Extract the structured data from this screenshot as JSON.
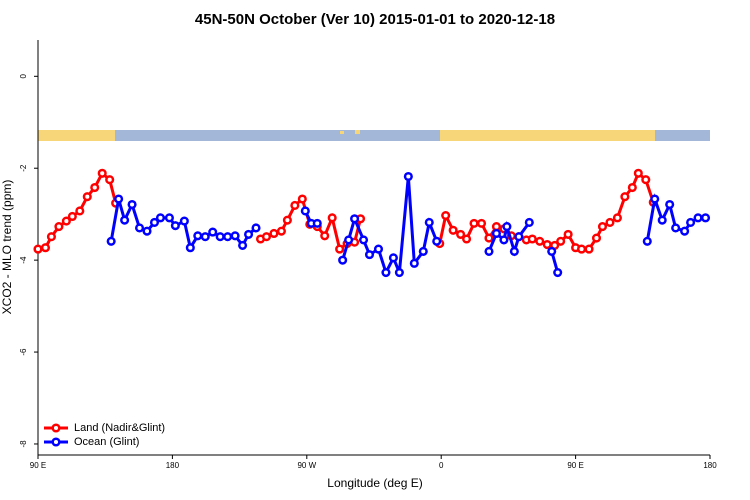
{
  "chart_data": {
    "type": "line",
    "title": "45N-50N October (Ver 10)   2015-01-01 to 2020-12-18",
    "xlabel": "Longitude (deg E)",
    "ylabel": "XCO2 - MLO trend (ppm)",
    "xlim": [
      90,
      540
    ],
    "ylim": [
      -8.24,
      0.79
    ],
    "xticks": [
      {
        "value": 90,
        "label": "90 E"
      },
      {
        "value": 180,
        "label": "180"
      },
      {
        "value": 270,
        "label": "90 W"
      },
      {
        "value": 360,
        "label": "0"
      },
      {
        "value": 450,
        "label": "90 E"
      },
      {
        "value": 540,
        "label": "180"
      }
    ],
    "yticks": [
      -8,
      -6,
      -4,
      -2,
      0
    ],
    "legend": "bottomleft",
    "series": [
      {
        "name": "Land (Nadir&Glint)",
        "color": "#ff0000",
        "x": [
          90,
          95,
          99,
          104,
          109,
          113,
          118,
          123,
          128,
          133,
          138,
          142,
          null,
          239,
          243,
          248,
          253,
          257,
          262,
          267,
          272,
          277,
          282,
          287,
          292,
          297,
          302,
          306,
          null,
          359,
          363,
          368,
          373,
          377,
          382,
          387,
          392,
          397,
          402,
          407,
          412,
          417,
          421,
          426,
          431,
          436,
          440,
          445,
          450,
          454,
          459,
          464,
          468,
          473,
          478,
          483,
          488,
          492,
          497,
          502
        ],
        "values": [
          -3.76,
          -3.73,
          -3.49,
          -3.27,
          -3.15,
          -3.05,
          -2.93,
          -2.62,
          -2.42,
          -2.11,
          -2.25,
          -2.76,
          null,
          -3.54,
          -3.49,
          -3.42,
          -3.37,
          -3.13,
          -2.81,
          -2.67,
          -3.22,
          -3.27,
          -3.47,
          -3.08,
          -3.76,
          -3.64,
          -3.61,
          -3.1,
          null,
          -3.64,
          -3.03,
          -3.35,
          -3.44,
          -3.54,
          -3.2,
          -3.2,
          -3.52,
          -3.27,
          -3.32,
          -3.47,
          -3.49,
          -3.56,
          -3.54,
          -3.59,
          -3.66,
          -3.68,
          -3.59,
          -3.44,
          -3.73,
          -3.76,
          -3.76,
          -3.52,
          -3.27,
          -3.18,
          -3.08,
          -2.62,
          -2.42,
          -2.11,
          -2.25,
          -2.74
        ]
      },
      {
        "name": "Ocean (Glint)",
        "color": "#0000ff",
        "x": [
          139,
          144,
          148,
          153,
          158,
          163,
          168,
          172,
          178,
          182,
          188,
          192,
          197,
          202,
          207,
          212,
          217,
          222,
          227,
          231,
          236,
          null,
          269,
          273,
          277,
          null,
          294,
          298,
          302,
          308,
          312,
          318,
          323,
          328,
          332,
          338,
          342,
          348,
          352,
          357,
          null,
          392,
          397,
          402,
          404,
          409,
          412,
          419,
          null,
          434,
          438,
          null,
          498,
          503,
          508,
          513,
          517,
          523,
          527,
          532,
          537
        ],
        "values": [
          -3.59,
          -2.67,
          -3.13,
          -2.79,
          -3.3,
          -3.37,
          -3.18,
          -3.08,
          -3.08,
          -3.25,
          -3.15,
          -3.73,
          -3.47,
          -3.49,
          -3.39,
          -3.49,
          -3.49,
          -3.47,
          -3.68,
          -3.44,
          -3.3,
          null,
          -2.93,
          -3.2,
          -3.2,
          null,
          -4.0,
          -3.56,
          -3.1,
          -3.56,
          -3.88,
          -3.76,
          -4.27,
          -3.95,
          -4.27,
          -2.18,
          -4.07,
          -3.81,
          -3.18,
          -3.59,
          null,
          -3.81,
          -3.42,
          -3.56,
          -3.27,
          -3.81,
          -3.49,
          -3.18,
          null,
          -3.81,
          -4.27,
          null,
          -3.59,
          -2.67,
          -3.13,
          -2.79,
          -3.3,
          -3.37,
          -3.18,
          -3.08,
          -3.08
        ]
      }
    ]
  }
}
